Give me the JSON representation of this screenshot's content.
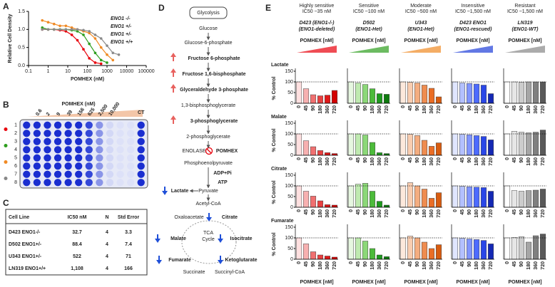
{
  "panel_labels": [
    "A",
    "B",
    "C",
    "D",
    "E"
  ],
  "chart_data": [
    {
      "type": "line",
      "ylabel": "Relative Cell Density",
      "xlabel": "POMHEX (nM)",
      "log_x": true,
      "x": [
        0.5,
        1,
        2,
        4,
        8,
        16,
        31,
        63,
        125,
        250,
        500,
        1000,
        2000,
        4000
      ],
      "xlim": [
        0.1,
        100000
      ],
      "xticks": [
        0.1,
        1,
        10,
        100,
        1000,
        10000,
        100000
      ],
      "ylim": [
        0,
        1.5
      ],
      "yticks": [
        {
          "value": 0,
          "label": "0.0"
        },
        {
          "value": 0.5,
          "label": "0.5"
        },
        {
          "value": 1,
          "label": "1.0"
        },
        {
          "value": 1.5,
          "label": "1.5"
        }
      ],
      "legend": "upper right",
      "series": [
        {
          "name": "ENO1 -/-",
          "color": "#e8000b",
          "values": [
            1.0,
            1.0,
            1.0,
            0.98,
            0.95,
            0.85,
            0.7,
            0.45,
            0.2,
            0.08,
            0.05,
            null,
            null,
            null
          ]
        },
        {
          "name": "ENO1 +/-",
          "color": "#2e9e1e",
          "values": [
            1.05,
            1.0,
            1.0,
            1.0,
            1.0,
            0.98,
            0.95,
            0.85,
            0.6,
            0.35,
            0.15,
            0.08,
            null,
            null
          ]
        },
        {
          "name": "ENO1 +/-",
          "color": "#f08a24",
          "values": [
            1.25,
            1.2,
            1.15,
            1.1,
            1.1,
            1.05,
            1.0,
            0.95,
            0.9,
            0.75,
            0.5,
            0.3,
            0.15,
            null
          ]
        },
        {
          "name": "ENO1 +/+",
          "color": "#8a8a8a",
          "values": [
            1.0,
            1.0,
            1.0,
            1.0,
            1.0,
            1.0,
            1.0,
            0.98,
            0.95,
            0.85,
            0.75,
            0.55,
            0.35,
            0.3
          ]
        }
      ]
    },
    {
      "type": "bar",
      "categories": [
        0,
        45,
        90,
        180,
        360,
        720
      ],
      "values": [
        100,
        68,
        40,
        35,
        38,
        60
      ],
      "colors": [
        "#ffe0e0",
        "#f7b0b0",
        "#f07070",
        "#e84040",
        "#e01818",
        "#d40000"
      ],
      "ylim": [
        0,
        150
      ],
      "yticks": [
        0,
        50,
        100,
        150
      ],
      "hline": 100
    },
    {
      "type": "bar",
      "categories": [
        0,
        45,
        90,
        180,
        360,
        720
      ],
      "values": [
        100,
        95,
        88,
        68,
        45,
        42
      ],
      "colors": [
        "#e6f7e0",
        "#bfeab0",
        "#8cd878",
        "#4cbb3a",
        "#1e9a1e",
        "#0e7a0e"
      ],
      "ylim": [
        0,
        150
      ],
      "hline": 100
    },
    {
      "type": "bar",
      "categories": [
        0,
        45,
        90,
        180,
        360,
        720
      ],
      "values": [
        100,
        98,
        95,
        85,
        70,
        30
      ],
      "colors": [
        "#fde9dc",
        "#f9cdb0",
        "#f4ad80",
        "#ef8c4f",
        "#ea6d25",
        "#d85c10"
      ],
      "ylim": [
        0,
        150
      ],
      "hline": 100
    },
    {
      "type": "bar",
      "categories": [
        0,
        45,
        90,
        180,
        360,
        720
      ],
      "values": [
        100,
        95,
        93,
        90,
        85,
        45
      ],
      "colors": [
        "#e0e6ff",
        "#b3c0ff",
        "#8095ff",
        "#4d6bff",
        "#2a47e8",
        "#1428b4"
      ],
      "ylim": [
        0,
        150
      ],
      "hline": 100
    },
    {
      "type": "bar",
      "categories": [
        0,
        45,
        90,
        180,
        360,
        720
      ],
      "values": [
        100,
        100,
        98,
        100,
        100,
        100
      ],
      "colors": [
        "#ffffff",
        "#e6e6e6",
        "#cccccc",
        "#a6a6a6",
        "#808080",
        "#595959"
      ],
      "ylim": [
        0,
        150
      ],
      "hline": 100
    },
    {
      "type": "bar",
      "categories": [
        0,
        45,
        90,
        180,
        360,
        720
      ],
      "values": [
        100,
        68,
        40,
        22,
        12,
        8
      ],
      "colors": [
        "#ffe0e0",
        "#f7b0b0",
        "#f07070",
        "#e84040",
        "#e01818",
        "#d40000"
      ],
      "ylim": [
        0,
        150
      ],
      "yticks": [
        0,
        50,
        100,
        150
      ],
      "hline": 100
    },
    {
      "type": "bar",
      "categories": [
        0,
        45,
        90,
        180,
        360,
        720
      ],
      "values": [
        100,
        100,
        95,
        60,
        12,
        8
      ],
      "colors": [
        "#e6f7e0",
        "#bfeab0",
        "#8cd878",
        "#4cbb3a",
        "#1e9a1e",
        "#0e7a0e"
      ],
      "ylim": [
        0,
        150
      ],
      "hline": 100
    },
    {
      "type": "bar",
      "categories": [
        0,
        45,
        90,
        180,
        360,
        720
      ],
      "values": [
        100,
        98,
        92,
        70,
        42,
        58
      ],
      "colors": [
        "#fde9dc",
        "#f9cdb0",
        "#f4ad80",
        "#ef8c4f",
        "#ea6d25",
        "#d85c10"
      ],
      "ylim": [
        0,
        150
      ],
      "hline": 100
    },
    {
      "type": "bar",
      "categories": [
        0,
        45,
        90,
        180,
        360,
        720
      ],
      "values": [
        100,
        98,
        96,
        92,
        88,
        72
      ],
      "colors": [
        "#e0e6ff",
        "#b3c0ff",
        "#8095ff",
        "#4d6bff",
        "#2a47e8",
        "#1428b4"
      ],
      "ylim": [
        0,
        150
      ],
      "hline": 100
    },
    {
      "type": "bar",
      "categories": [
        0,
        45,
        90,
        180,
        360,
        720
      ],
      "values": [
        100,
        112,
        108,
        105,
        108,
        118
      ],
      "colors": [
        "#ffffff",
        "#e6e6e6",
        "#cccccc",
        "#a6a6a6",
        "#808080",
        "#595959"
      ],
      "ylim": [
        0,
        150
      ],
      "hline": 100
    },
    {
      "type": "bar",
      "categories": [
        0,
        45,
        90,
        180,
        360,
        720
      ],
      "values": [
        100,
        75,
        52,
        30,
        12,
        10
      ],
      "colors": [
        "#ffe0e0",
        "#f7b0b0",
        "#f07070",
        "#e84040",
        "#e01818",
        "#d40000"
      ],
      "ylim": [
        0,
        150
      ],
      "yticks": [
        0,
        50,
        100,
        150
      ],
      "hline": 100
    },
    {
      "type": "bar",
      "categories": [
        0,
        45,
        90,
        180,
        360,
        720
      ],
      "values": [
        100,
        108,
        112,
        75,
        28,
        10
      ],
      "colors": [
        "#e6f7e0",
        "#bfeab0",
        "#8cd878",
        "#4cbb3a",
        "#1e9a1e",
        "#0e7a0e"
      ],
      "ylim": [
        0,
        150
      ],
      "hline": 100
    },
    {
      "type": "bar",
      "categories": [
        0,
        45,
        90,
        180,
        360,
        720
      ],
      "values": [
        100,
        115,
        100,
        85,
        42,
        68
      ],
      "colors": [
        "#fde9dc",
        "#f9cdb0",
        "#f4ad80",
        "#ef8c4f",
        "#ea6d25",
        "#d85c10"
      ],
      "ylim": [
        0,
        150
      ],
      "hline": 100
    },
    {
      "type": "bar",
      "categories": [
        0,
        45,
        90,
        180,
        360,
        720
      ],
      "values": [
        100,
        98,
        96,
        94,
        92,
        75
      ],
      "colors": [
        "#e0e6ff",
        "#b3c0ff",
        "#8095ff",
        "#4d6bff",
        "#2a47e8",
        "#1428b4"
      ],
      "ylim": [
        0,
        150
      ],
      "hline": 100
    },
    {
      "type": "bar",
      "categories": [
        0,
        45,
        90,
        180,
        360,
        720
      ],
      "values": [
        100,
        78,
        75,
        78,
        80,
        85
      ],
      "colors": [
        "#ffffff",
        "#e6e6e6",
        "#cccccc",
        "#a6a6a6",
        "#808080",
        "#595959"
      ],
      "ylim": [
        0,
        150
      ],
      "hline": 100
    },
    {
      "type": "bar",
      "categories": [
        0,
        45,
        90,
        180,
        360,
        720
      ],
      "values": [
        100,
        72,
        35,
        20,
        15,
        10
      ],
      "colors": [
        "#ffe0e0",
        "#f7b0b0",
        "#f07070",
        "#e84040",
        "#e01818",
        "#d40000"
      ],
      "ylim": [
        0,
        150
      ],
      "yticks": [
        0,
        50,
        100,
        150
      ],
      "hline": 100
    },
    {
      "type": "bar",
      "categories": [
        0,
        45,
        90,
        180,
        360,
        720
      ],
      "values": [
        100,
        100,
        85,
        50,
        20,
        12
      ],
      "colors": [
        "#e6f7e0",
        "#bfeab0",
        "#8cd878",
        "#4cbb3a",
        "#1e9a1e",
        "#0e7a0e"
      ],
      "ylim": [
        0,
        150
      ],
      "hline": 100
    },
    {
      "type": "bar",
      "categories": [
        0,
        45,
        90,
        180,
        360,
        720
      ],
      "values": [
        100,
        108,
        100,
        80,
        50,
        68
      ],
      "colors": [
        "#fde9dc",
        "#f9cdb0",
        "#f4ad80",
        "#ef8c4f",
        "#ea6d25",
        "#d85c10"
      ],
      "ylim": [
        0,
        150
      ],
      "hline": 100
    },
    {
      "type": "bar",
      "categories": [
        0,
        45,
        90,
        180,
        360,
        720
      ],
      "values": [
        100,
        98,
        95,
        92,
        88,
        72
      ],
      "colors": [
        "#e0e6ff",
        "#b3c0ff",
        "#8095ff",
        "#4d6bff",
        "#2a47e8",
        "#1428b4"
      ],
      "ylim": [
        0,
        150
      ],
      "hline": 100
    },
    {
      "type": "bar",
      "categories": [
        0,
        45,
        90,
        180,
        360,
        720
      ],
      "values": [
        100,
        102,
        105,
        80,
        110,
        118
      ],
      "colors": [
        "#ffffff",
        "#e6e6e6",
        "#cccccc",
        "#a6a6a6",
        "#808080",
        "#595959"
      ],
      "ylim": [
        0,
        150
      ],
      "hline": 100
    }
  ],
  "plate": {
    "title": "POMHEX (nM)",
    "doses": [
      "0.6",
      "2",
      "9",
      "39",
      "156",
      "625",
      "2,500",
      "10,000"
    ],
    "control": "CT",
    "rows": [
      1,
      2,
      3,
      4,
      5,
      6,
      7,
      8
    ]
  },
  "table": {
    "header": [
      "Cell Line",
      "IC50 nM",
      "N",
      "Std Error"
    ],
    "rows": [
      [
        "D423 ENO1-/-",
        32.7,
        4,
        3.3
      ],
      [
        "D502 ENO1+/-",
        88.4,
        4,
        7.4
      ],
      [
        "U343 ENO1+/-",
        522,
        4,
        71
      ],
      [
        "LN319 ENO1+/+",
        "1,108",
        4,
        166
      ]
    ],
    "row_colors": [
      "#e8000b",
      "#2e9e1e",
      "#f08a24",
      "#777777"
    ]
  },
  "pathway": {
    "nodes": [
      {
        "label": "Glycolysis",
        "color": "#333333"
      },
      {
        "label": "Glucose",
        "color": "#333333"
      },
      {
        "label": "Glucose-6-phosphate",
        "color": "#333333"
      },
      {
        "label": "Fructose 6-phosphate",
        "color": "#e8000b"
      },
      {
        "label": "Fructose 1,6-bisphosphate",
        "color": "#e8000b"
      },
      {
        "label": "Glyceraldehyde 3-phosphate",
        "color": "#e8000b"
      },
      {
        "label": "1,3-bisphosphoglycerate",
        "color": "#333333"
      },
      {
        "label": "3-phosphoglycerate",
        "color": "#e8000b"
      },
      {
        "label": "2-phosphoglycerate",
        "color": "#888888"
      },
      {
        "label": "ENOLASE",
        "color": "#333333"
      },
      {
        "label": "POMHEX",
        "color": "#e8000b"
      },
      {
        "label": "Phosphoenolpyruvate",
        "color": "#888888"
      },
      {
        "label": "ADP+Pi",
        "color": "#666666"
      },
      {
        "label": "ATP",
        "color": "#666666"
      },
      {
        "label": "Pyruvate",
        "color": "#888888"
      },
      {
        "label": "Lactate",
        "color": "#1f4fd8"
      },
      {
        "label": "Acetyl-CoA",
        "color": "#888888"
      },
      {
        "label": "Oxaloacetate",
        "color": "#333333"
      },
      {
        "label": "Citrate",
        "color": "#1f4fd8"
      },
      {
        "label": "TCA",
        "color": "#333333"
      },
      {
        "label": "Cycle",
        "color": "#333333"
      },
      {
        "label": "Malate",
        "color": "#1f4fd8"
      },
      {
        "label": "Isocitrate",
        "color": "#1f4fd8"
      },
      {
        "label": "Fumarate",
        "color": "#1f4fd8"
      },
      {
        "label": "Ketoglutarate",
        "color": "#1f4fd8"
      },
      {
        "label": "Succinate",
        "color": "#333333"
      },
      {
        "label": "Succinyl-CoA",
        "color": "#333333"
      }
    ]
  },
  "panel_e": {
    "columns": [
      {
        "sensitivity": "Highly sensitive",
        "ic50": "IC50 ~35 nM",
        "line": "D423 (ENO1-/-)",
        "note": "(ENO1-deleted)",
        "color": "#e8000b"
      },
      {
        "sensitivity": "Sensitive",
        "ic50": "IC50 ~100 nM",
        "line": "D502",
        "note": "(ENO1-Het)",
        "color": "#2e9e1e"
      },
      {
        "sensitivity": "Moderate",
        "ic50": "IC50 ~500 nM",
        "line": "U343",
        "note": "(ENO1-Het)",
        "color": "#f08a24"
      },
      {
        "sensitivity": "Insensitive",
        "ic50": "IC50 ~1,500 nM",
        "line": "D423 ENO1",
        "note": "(ENO1-rescued)",
        "color": "#1f3fd8"
      },
      {
        "sensitivity": "Resistant",
        "ic50": "IC50 ~1,500 nM",
        "line": "LN319",
        "note": "(ENO1-WT)",
        "color": "#888888"
      }
    ],
    "dose_label": "POMHEX [nM]",
    "metabolites": [
      "Lactate",
      "Malate",
      "Citrate",
      "Fumarate"
    ],
    "ylabel": "% Control",
    "xlabel": "POMHEX [nM]"
  }
}
